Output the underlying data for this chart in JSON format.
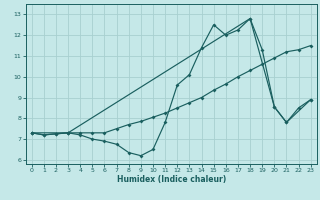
{
  "xlabel": "Humidex (Indice chaleur)",
  "bg_color": "#c5e8e8",
  "grid_color": "#a8d0d0",
  "line_color": "#1a5f5f",
  "xlim": [
    -0.5,
    23.5
  ],
  "ylim": [
    5.8,
    13.5
  ],
  "yticks": [
    6,
    7,
    8,
    9,
    10,
    11,
    12,
    13
  ],
  "xticks": [
    0,
    1,
    2,
    3,
    4,
    5,
    6,
    7,
    8,
    9,
    10,
    11,
    12,
    13,
    14,
    15,
    16,
    17,
    18,
    19,
    20,
    21,
    22,
    23
  ],
  "line1_x": [
    0,
    1,
    2,
    3,
    4,
    5,
    6,
    7,
    8,
    9,
    10,
    11,
    12,
    13,
    14,
    15,
    16,
    17,
    18,
    19,
    20,
    21,
    22,
    23
  ],
  "line1_y": [
    7.3,
    7.2,
    7.25,
    7.3,
    7.2,
    7.0,
    6.9,
    6.75,
    6.35,
    6.2,
    6.5,
    7.8,
    9.6,
    10.1,
    11.4,
    12.5,
    12.0,
    12.25,
    12.8,
    11.3,
    8.55,
    7.8,
    8.5,
    8.9
  ],
  "line2_x": [
    0,
    1,
    2,
    3,
    4,
    5,
    6,
    7,
    8,
    9,
    10,
    11,
    12,
    13,
    14,
    15,
    16,
    17,
    18,
    19,
    20,
    21,
    22,
    23
  ],
  "line2_y": [
    7.3,
    7.2,
    7.25,
    7.3,
    7.3,
    7.3,
    7.3,
    7.5,
    7.7,
    7.85,
    8.05,
    8.25,
    8.5,
    8.75,
    9.0,
    9.35,
    9.65,
    10.0,
    10.3,
    10.6,
    10.9,
    11.2,
    11.3,
    11.5
  ],
  "line3_x": [
    0,
    3,
    18,
    20,
    21,
    23
  ],
  "line3_y": [
    7.3,
    7.3,
    12.8,
    8.55,
    7.8,
    8.9
  ]
}
